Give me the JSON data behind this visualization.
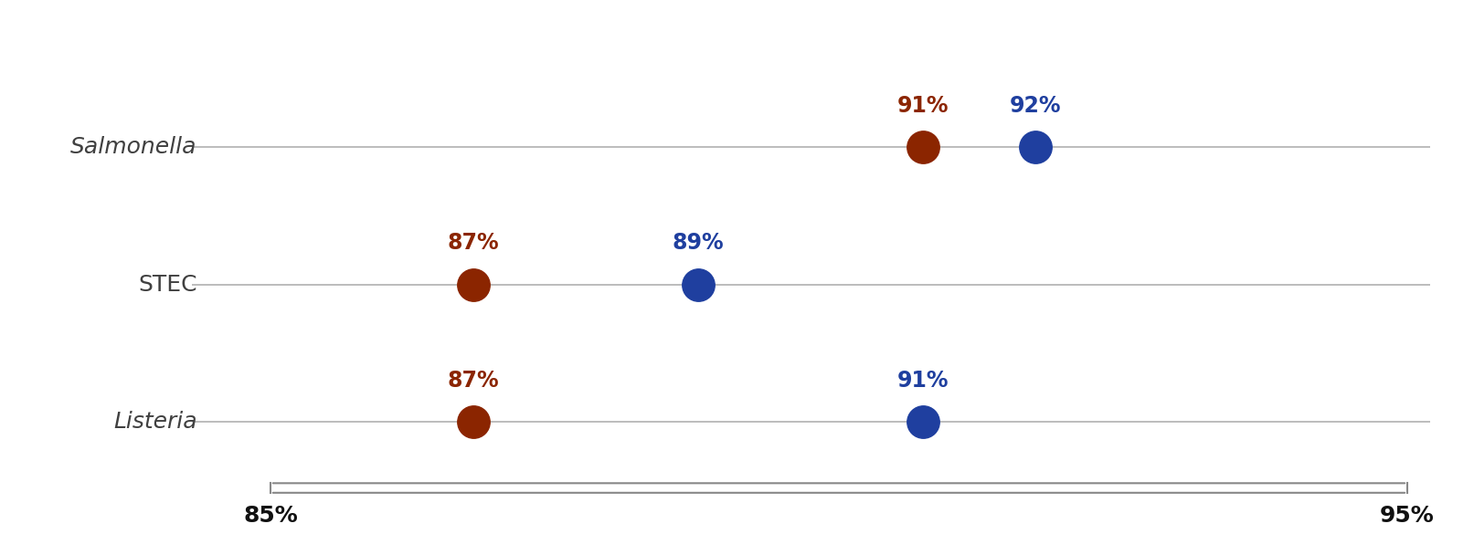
{
  "categories": [
    "Salmonella",
    "STEC",
    "Listeria"
  ],
  "italic_labels": [
    true,
    false,
    true
  ],
  "year10_values": [
    91,
    87,
    87
  ],
  "year11_values": [
    92,
    89,
    91
  ],
  "year10_color": "#8B2500",
  "year11_color": "#1F3F9F",
  "year10_label_color": "#8B2500",
  "year11_label_color": "#1F3F9F",
  "xlim": [
    85,
    95
  ],
  "xticks": [
    85,
    95
  ],
  "xticklabels": [
    "85%",
    "95%"
  ],
  "dot_size": 650,
  "line_color": "#B0B0B0",
  "line_width": 1.2,
  "background_color": "#FFFFFF",
  "category_fontsize": 18,
  "tick_fontsize": 18,
  "annotation_fontsize": 17,
  "label_color": "#404040"
}
